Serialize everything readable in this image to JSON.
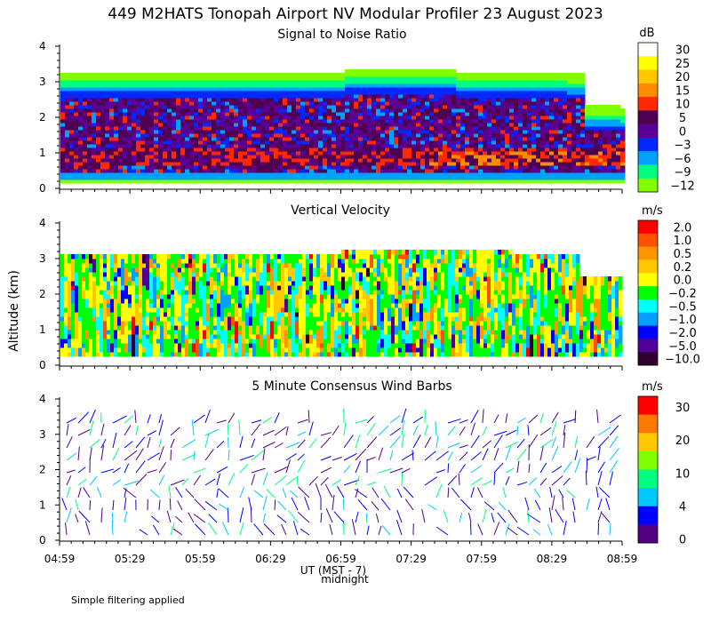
{
  "title": "449 M2HATS Tonopah Airport NV Modular Profiler 23 August 2023",
  "ylabel": "Altitude (km)",
  "footnote": "Simple filtering applied",
  "xaxis": {
    "ticks": [
      "04:59",
      "05:29",
      "05:59",
      "06:29",
      "06:59",
      "07:29",
      "07:59",
      "08:29",
      "08:59"
    ],
    "label": "UT (MST - 7)",
    "sublabel": "midnight",
    "range": [
      0,
      240
    ]
  },
  "chart_data": [
    {
      "type": "heatmap",
      "title": "Signal to Noise Ratio",
      "ylim": [
        0,
        4
      ],
      "yticks": [
        "0",
        "1",
        "2",
        "3",
        "4"
      ],
      "colorbar": {
        "unit": "dB",
        "labels": [
          "30",
          "25",
          "20",
          "15",
          "10",
          "5",
          "0",
          "−3",
          "−6",
          "−9",
          "−12"
        ],
        "colors": [
          "#ffffff",
          "#ffff00",
          "#ffc800",
          "#ff8c00",
          "#ff2800",
          "#500050",
          "#5a0096",
          "#0028ff",
          "#00a0ff",
          "#00ff80",
          "#80ff00"
        ]
      }
    },
    {
      "type": "heatmap",
      "title": "Vertical Velocity",
      "ylim": [
        0,
        4
      ],
      "yticks": [
        "0",
        "1",
        "2",
        "3",
        "4"
      ],
      "colorbar": {
        "unit": "m/s",
        "labels": [
          "2.0",
          "1.0",
          "0.5",
          "0.2",
          "0.0",
          "−0.2",
          "−0.5",
          "−1.0",
          "−2.0",
          "−5.0",
          "−10.0"
        ],
        "colors": [
          "#ff0000",
          "#ff5000",
          "#ff9600",
          "#ffc800",
          "#ffff00",
          "#00ff00",
          "#00ffff",
          "#00a0ff",
          "#0000ff",
          "#500096",
          "#300030"
        ]
      }
    },
    {
      "type": "scatter",
      "title": "5 Minute Consensus Wind Barbs",
      "ylim": [
        0,
        4
      ],
      "yticks": [
        "0",
        "1",
        "2",
        "3",
        "4"
      ],
      "colorbar": {
        "unit": "m/s",
        "labels": [
          "30",
          "20",
          "10",
          "4",
          "0"
        ],
        "colors": [
          "#ff0000",
          "#ff7800",
          "#ffc800",
          "#80ff00",
          "#00ff80",
          "#00c8ff",
          "#0000ff",
          "#500080"
        ]
      }
    }
  ]
}
